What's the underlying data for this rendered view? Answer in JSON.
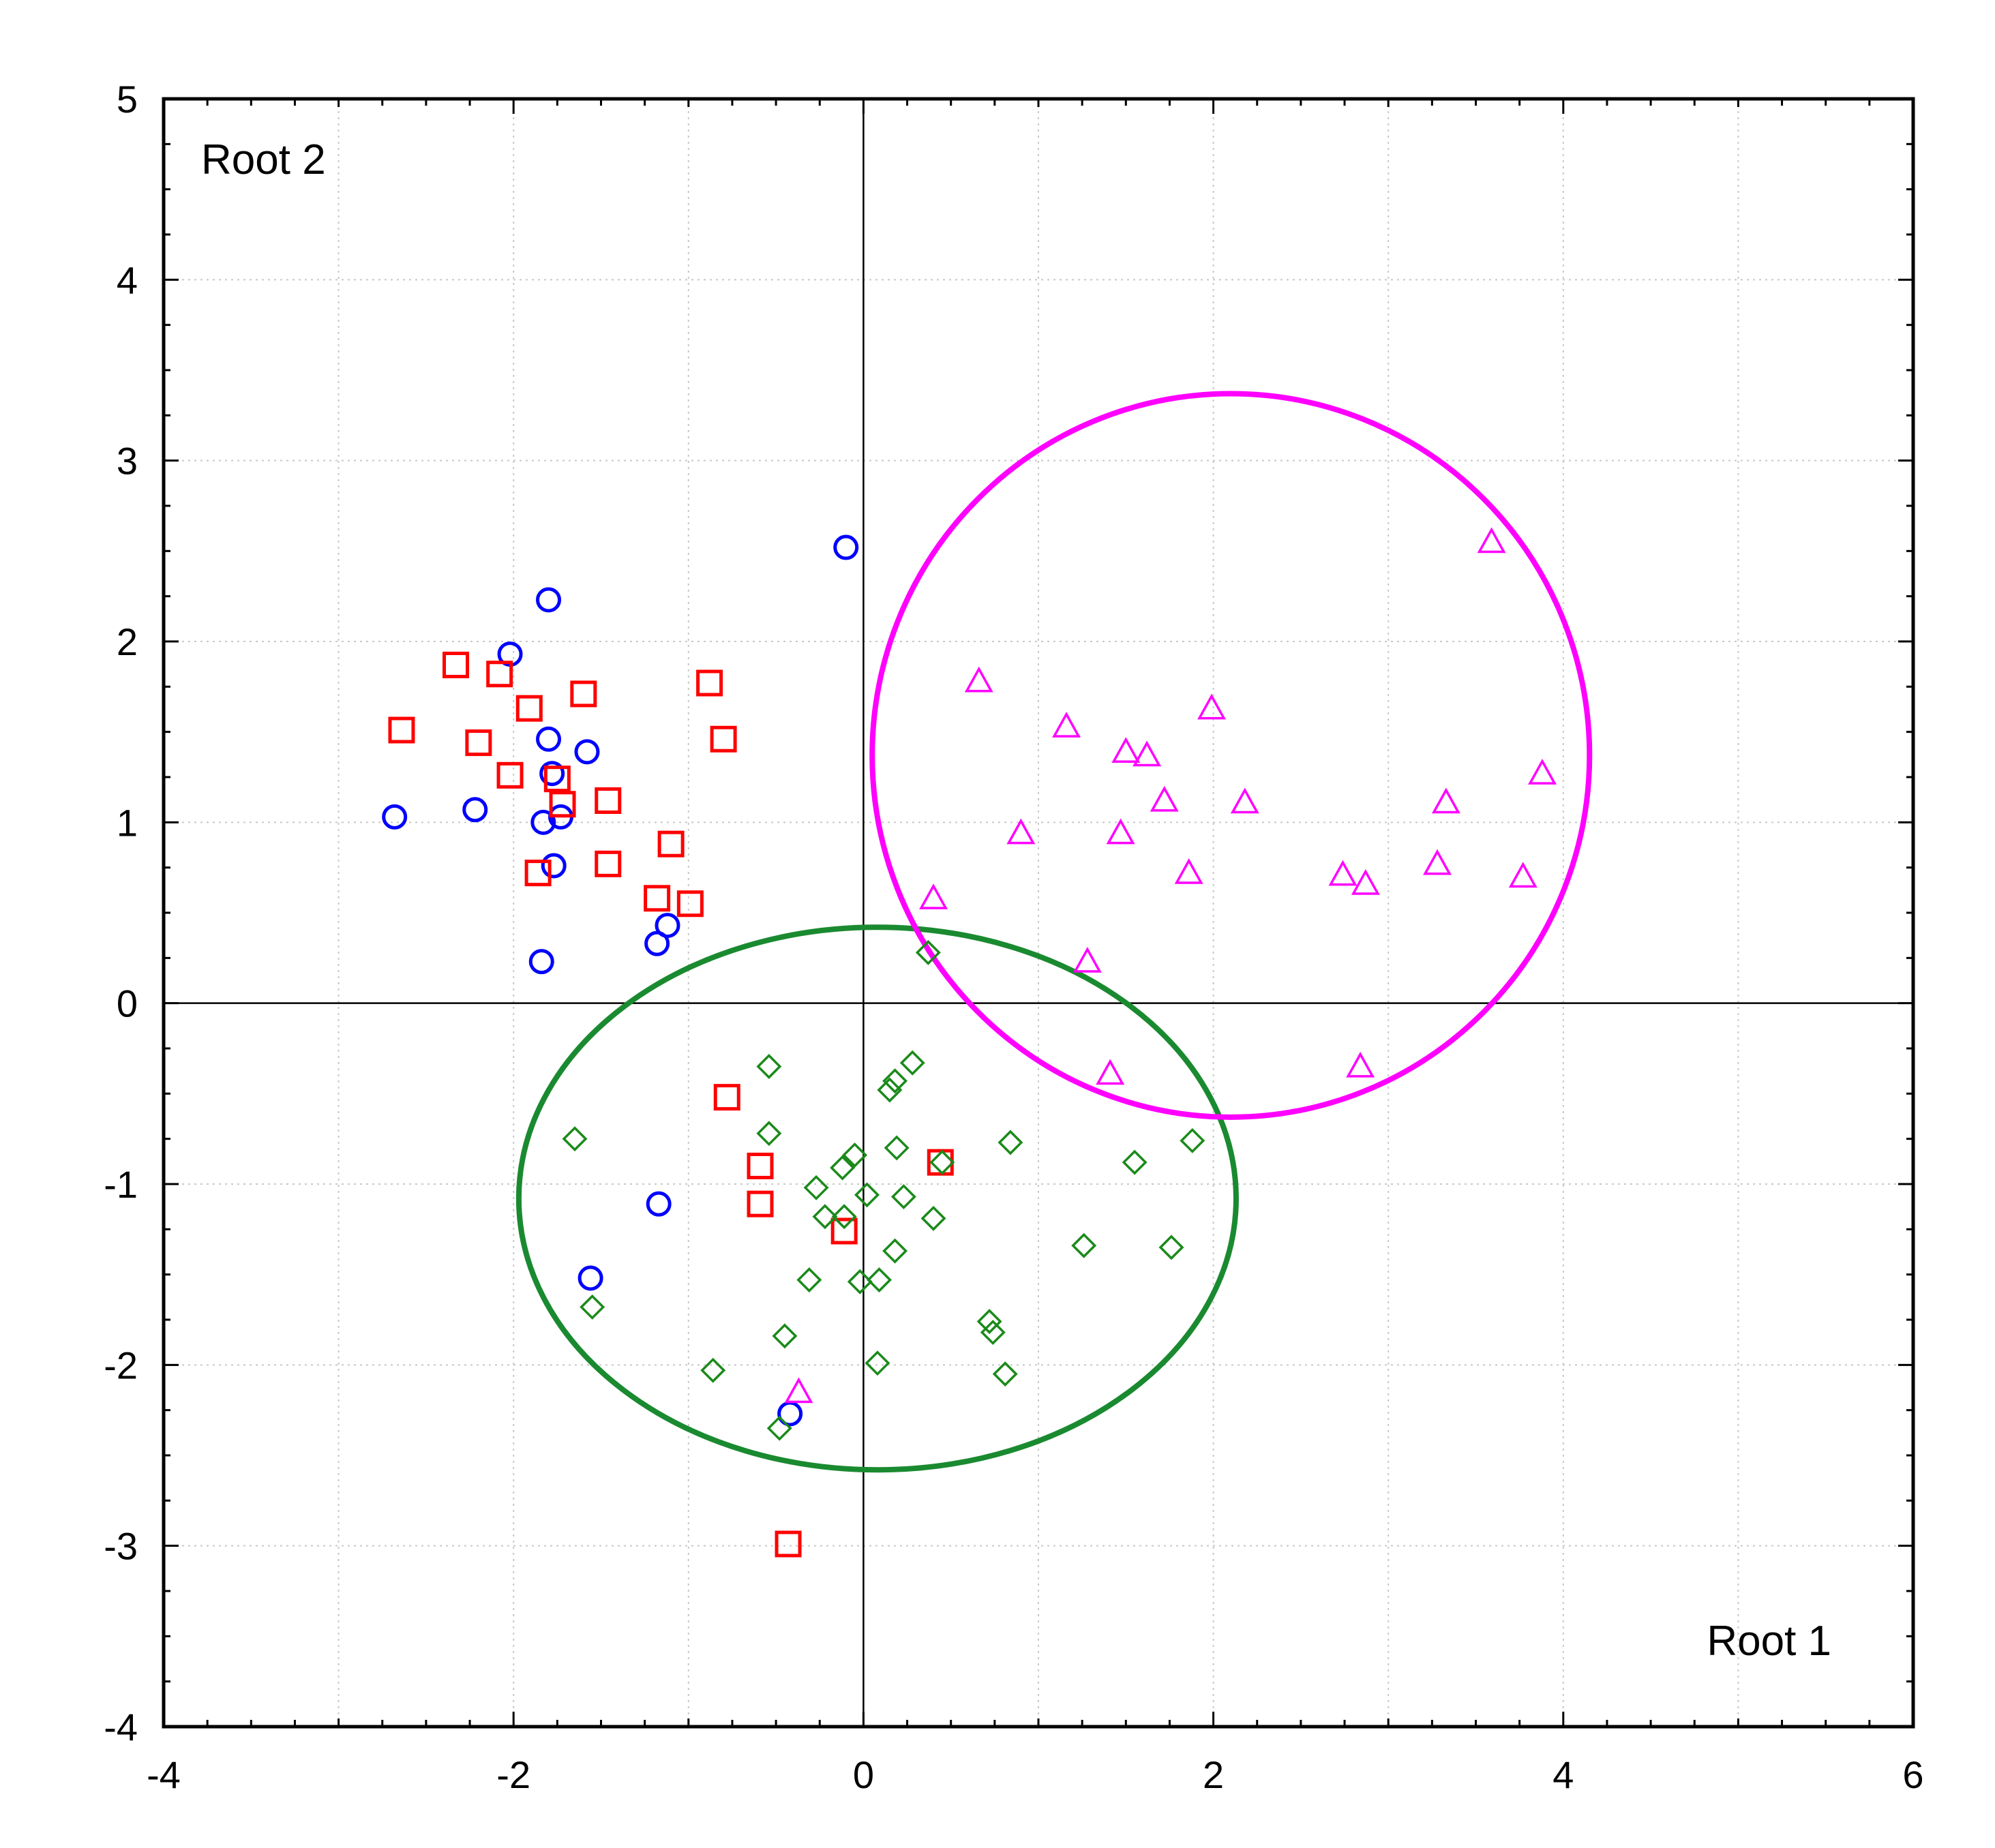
{
  "chart_data": {
    "type": "scatter",
    "title": "",
    "xlabel": "Root 1",
    "ylabel": "Root 2",
    "xlim": [
      -4,
      6
    ],
    "ylim": [
      -4,
      5
    ],
    "x_ticks": [
      -4,
      -2,
      0,
      2,
      4,
      6
    ],
    "y_ticks": [
      5,
      4,
      3,
      2,
      1,
      0,
      -1,
      -2,
      -3,
      -4
    ],
    "grid": true,
    "colors": {
      "circle": "#0000ff",
      "square": "#ff0000",
      "diamond": "#1a8a1a",
      "triangle": "#ff00ff",
      "ellipse_green": "#1a8a30",
      "ellipse_magenta": "#ff00ff"
    },
    "series": [
      {
        "name": "circle",
        "marker": "circle",
        "color": "#0000ff",
        "points": [
          [
            -0.1,
            2.52
          ],
          [
            -1.8,
            2.23
          ],
          [
            -2.02,
            1.93
          ],
          [
            -1.8,
            1.46
          ],
          [
            -1.58,
            1.39
          ],
          [
            -1.78,
            1.27
          ],
          [
            -2.22,
            1.07
          ],
          [
            -2.68,
            1.03
          ],
          [
            -1.73,
            1.03
          ],
          [
            -1.83,
            1.0
          ],
          [
            -1.77,
            0.76
          ],
          [
            -1.12,
            0.43
          ],
          [
            -1.18,
            0.33
          ],
          [
            -1.84,
            0.23
          ],
          [
            -1.17,
            -1.11
          ],
          [
            -1.56,
            -1.52
          ],
          [
            -0.42,
            -2.27
          ]
        ]
      },
      {
        "name": "square",
        "marker": "square",
        "color": "#ff0000",
        "points": [
          [
            -2.33,
            1.87
          ],
          [
            -2.08,
            1.82
          ],
          [
            -1.91,
            1.63
          ],
          [
            -1.6,
            1.71
          ],
          [
            -0.88,
            1.77
          ],
          [
            -2.64,
            1.51
          ],
          [
            -2.2,
            1.44
          ],
          [
            -0.8,
            1.46
          ],
          [
            -2.02,
            1.26
          ],
          [
            -1.75,
            1.24
          ],
          [
            -1.72,
            1.1
          ],
          [
            -1.46,
            1.12
          ],
          [
            -1.1,
            0.88
          ],
          [
            -1.46,
            0.77
          ],
          [
            -1.86,
            0.72
          ],
          [
            -1.18,
            0.58
          ],
          [
            -0.99,
            0.55
          ],
          [
            -0.78,
            -0.52
          ],
          [
            -0.59,
            -0.9
          ],
          [
            -0.59,
            -1.11
          ],
          [
            0.44,
            -0.88
          ],
          [
            -0.11,
            -1.26
          ],
          [
            -0.43,
            -2.99
          ]
        ]
      },
      {
        "name": "diamond",
        "marker": "diamond",
        "color": "#1a8a1a",
        "points": [
          [
            0.37,
            0.28
          ],
          [
            -0.54,
            -0.35
          ],
          [
            0.28,
            -0.33
          ],
          [
            0.18,
            -0.43
          ],
          [
            0.15,
            -0.48
          ],
          [
            -1.65,
            -0.75
          ],
          [
            -0.54,
            -0.72
          ],
          [
            0.84,
            -0.77
          ],
          [
            1.88,
            -0.76
          ],
          [
            0.19,
            -0.8
          ],
          [
            -0.05,
            -0.84
          ],
          [
            -0.12,
            -0.91
          ],
          [
            0.45,
            -0.88
          ],
          [
            1.55,
            -0.88
          ],
          [
            -0.27,
            -1.02
          ],
          [
            0.02,
            -1.06
          ],
          [
            0.23,
            -1.07
          ],
          [
            -0.22,
            -1.18
          ],
          [
            -0.11,
            -1.18
          ],
          [
            0.4,
            -1.19
          ],
          [
            1.26,
            -1.34
          ],
          [
            1.76,
            -1.35
          ],
          [
            0.18,
            -1.37
          ],
          [
            -0.31,
            -1.53
          ],
          [
            -0.02,
            -1.54
          ],
          [
            0.09,
            -1.53
          ],
          [
            -1.55,
            -1.68
          ],
          [
            0.72,
            -1.76
          ],
          [
            0.74,
            -1.82
          ],
          [
            -0.45,
            -1.84
          ],
          [
            0.08,
            -1.99
          ],
          [
            -0.86,
            -2.03
          ],
          [
            0.81,
            -2.05
          ],
          [
            -0.48,
            -2.35
          ]
        ]
      },
      {
        "name": "triangle",
        "marker": "triangle",
        "color": "#ff00ff",
        "points": [
          [
            3.59,
            2.55
          ],
          [
            0.66,
            1.78
          ],
          [
            1.99,
            1.63
          ],
          [
            1.16,
            1.53
          ],
          [
            1.5,
            1.39
          ],
          [
            1.62,
            1.37
          ],
          [
            3.88,
            1.27
          ],
          [
            1.72,
            1.12
          ],
          [
            2.18,
            1.11
          ],
          [
            3.33,
            1.11
          ],
          [
            0.9,
            0.94
          ],
          [
            1.47,
            0.94
          ],
          [
            1.86,
            0.72
          ],
          [
            2.74,
            0.71
          ],
          [
            2.87,
            0.66
          ],
          [
            3.28,
            0.77
          ],
          [
            3.77,
            0.7
          ],
          [
            0.4,
            0.58
          ],
          [
            1.28,
            0.23
          ],
          [
            1.41,
            -0.39
          ],
          [
            2.84,
            -0.35
          ],
          [
            -0.37,
            -2.15
          ]
        ]
      }
    ],
    "ellipses": [
      {
        "name": "green-ellipse",
        "color": "#1a8a30",
        "center": [
          0.08,
          -1.08
        ],
        "rx": 2.05,
        "ry": 1.5
      },
      {
        "name": "magenta-ellipse",
        "color": "#ff00ff",
        "center": [
          2.1,
          1.37
        ],
        "rx": 2.05,
        "ry": 2.0
      }
    ]
  }
}
